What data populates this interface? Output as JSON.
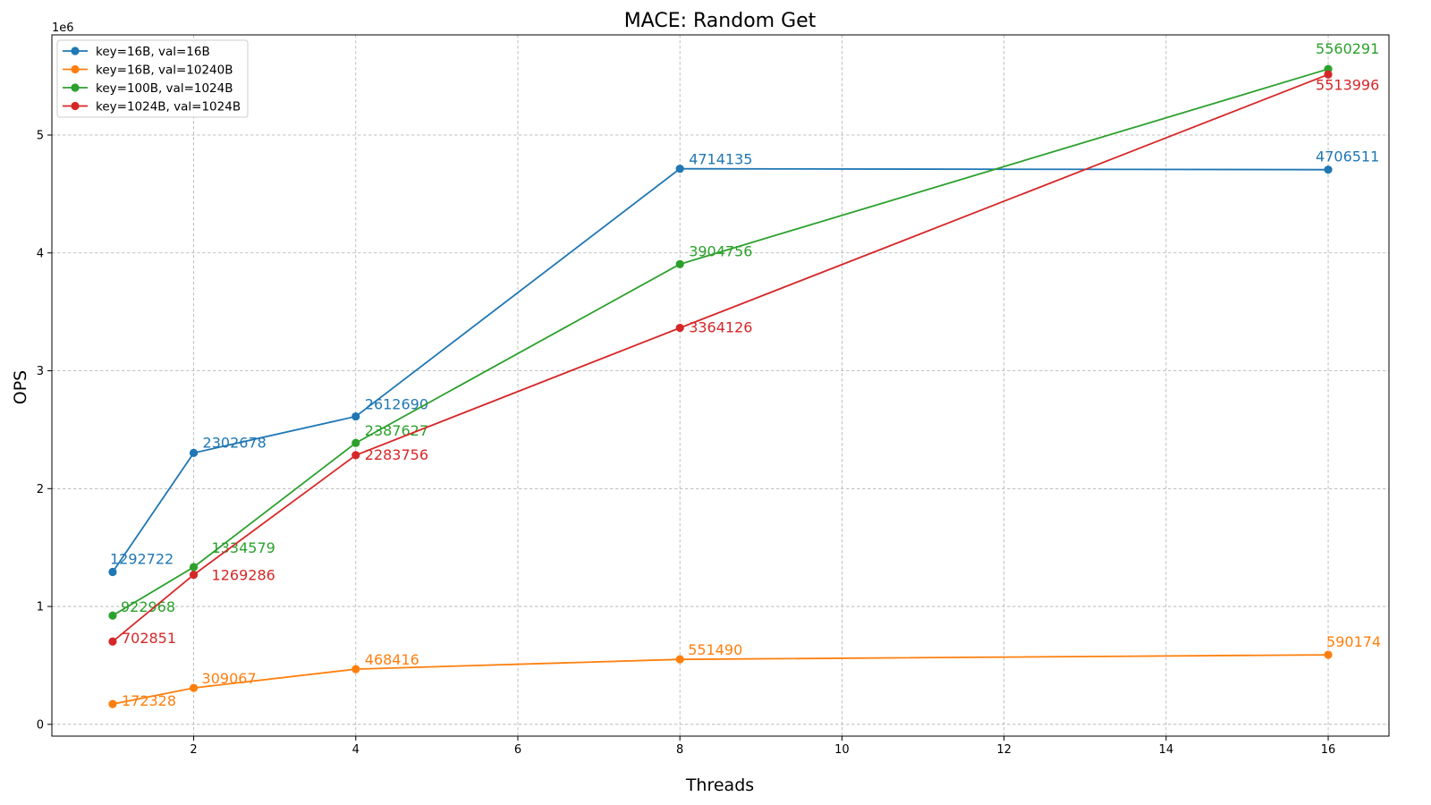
{
  "chart_data": {
    "type": "line",
    "title": "MACE: Random Get",
    "xlabel": "Threads",
    "ylabel": "OPS",
    "y_offset_label": "1e6",
    "x": [
      1,
      2,
      4,
      8,
      16
    ],
    "xlim": [
      0.25,
      16.75
    ],
    "ylim": [
      -100000,
      5850000
    ],
    "x_ticks": [
      2,
      4,
      6,
      8,
      10,
      12,
      14,
      16
    ],
    "y_ticks": [
      0,
      1,
      2,
      3,
      4,
      5
    ],
    "y_tick_multiplier": 1000000,
    "grid": true,
    "legend_position": "upper-left",
    "series": [
      {
        "name": "key=16B, val=16B",
        "color": "#1f77b4",
        "values": [
          1292722,
          2302678,
          2612690,
          4714135,
          4706511
        ],
        "labels": [
          "1292722",
          "2302678",
          "2612690",
          "4714135",
          "4706511"
        ]
      },
      {
        "name": "key=16B, val=10240B",
        "color": "#ff7f0e",
        "values": [
          172328,
          309067,
          468416,
          551490,
          590174
        ],
        "labels": [
          "172328",
          "309067",
          "468416",
          "551490",
          "590174"
        ]
      },
      {
        "name": "key=100B, val=1024B",
        "color": "#2ca02c",
        "values": [
          922968,
          1334579,
          2387627,
          3904756,
          5560291
        ],
        "labels": [
          "922968",
          "1334579",
          "2387627",
          "3904756",
          "5560291"
        ]
      },
      {
        "name": "key=1024B, val=1024B",
        "color": "#d62728",
        "values": [
          702851,
          1269286,
          2283756,
          3364126,
          5513996
        ],
        "labels": [
          "702851",
          "1269286",
          "2283756",
          "3364126",
          "5513996"
        ]
      }
    ]
  }
}
